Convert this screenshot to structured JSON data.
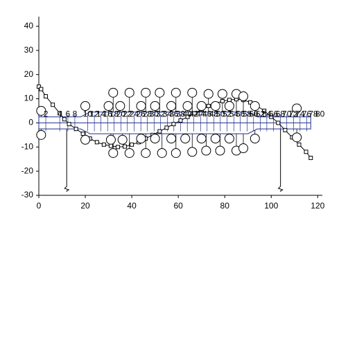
{
  "chart_data": {
    "type": "scatter",
    "xlim": [
      0,
      122
    ],
    "ylim": [
      -30,
      44
    ],
    "xticks": [
      0,
      20,
      40,
      60,
      80,
      100,
      120
    ],
    "yticks": [
      -30,
      -20,
      -10,
      0,
      10,
      20,
      30,
      40
    ],
    "band": {
      "color": "#1f2f8f",
      "x": [
        0,
        18,
        22,
        90,
        94,
        117
      ],
      "upper": [
        2.5,
        2.5,
        4.5,
        4.5,
        2.5,
        2.5
      ],
      "lower": [
        -2.5,
        -2.5,
        -4.5,
        -4.5,
        -2.5,
        -2.5
      ]
    },
    "station_labels": {
      "x": [
        3,
        9,
        12.5,
        15.5,
        21,
        23.9,
        26.7,
        29.6,
        32.4,
        35.3,
        38.1,
        41,
        43.9,
        46.7,
        49.6,
        52.4,
        55.3,
        58.1,
        61,
        63.9,
        66.7,
        69.6,
        72.4,
        75.3,
        78.1,
        81,
        83.9,
        86.7,
        89.6,
        92.4,
        95.3,
        98.1,
        101,
        103.9,
        106.7,
        109.6,
        112.4,
        115.3,
        118.1,
        121
      ],
      "labels": [
        2,
        4,
        6,
        8,
        10,
        12,
        14,
        16,
        18,
        20,
        22,
        24,
        26,
        28,
        30,
        32,
        34,
        36,
        38,
        40,
        42,
        44,
        46,
        48,
        50,
        52,
        54,
        56,
        58,
        60,
        62,
        64,
        66,
        68,
        70,
        72,
        74,
        76,
        78,
        80
      ],
      "y": 3.5
    },
    "supports": {
      "x": [
        12,
        104
      ],
      "values": [
        -28,
        -28
      ]
    },
    "series": [
      {
        "marker": "square",
        "color": "#000000",
        "line": true,
        "x": [
          0,
          1,
          3,
          6,
          9,
          11,
          13,
          16,
          19,
          22,
          25,
          28,
          31,
          34,
          37,
          40,
          43,
          46,
          49,
          52,
          55,
          58,
          61,
          64,
          67,
          70,
          73,
          76,
          79,
          82,
          85,
          88,
          91,
          94,
          97,
          100,
          103,
          106,
          109,
          112,
          115,
          117
        ],
        "values": [
          15,
          14,
          11,
          7.5,
          4,
          1.5,
          -0.5,
          -2.5,
          -4.5,
          -6.5,
          -8,
          -9,
          -9.5,
          -10,
          -9.8,
          -9,
          -8,
          -6.5,
          -5,
          -3.5,
          -2,
          -0.5,
          1,
          2.5,
          4,
          5.5,
          7,
          8,
          9,
          9.5,
          9.8,
          9.5,
          8.5,
          7,
          5,
          2.5,
          0,
          -3,
          -6,
          -9,
          -12,
          -14.5
        ]
      },
      {
        "marker": "circle",
        "color": "#000000",
        "line": false,
        "x": [
          1,
          20,
          30,
          32,
          35,
          39,
          44,
          46,
          50,
          52,
          57,
          59,
          64,
          66,
          70,
          73,
          76,
          79,
          82,
          85,
          88,
          93,
          111
        ],
        "values": [
          5,
          7,
          7,
          12.5,
          7,
          12.5,
          7,
          12.5,
          7,
          12.5,
          7,
          12.5,
          7,
          12.5,
          7,
          12,
          7,
          12,
          7,
          12,
          11,
          7,
          6
        ]
      },
      {
        "marker": "circle",
        "color": "#000000",
        "line": false,
        "x": [
          1,
          20,
          31,
          32,
          36,
          39,
          44,
          46,
          50,
          53,
          57,
          59,
          63,
          66,
          70,
          72,
          76,
          78,
          82,
          85,
          88,
          93,
          111
        ],
        "values": [
          -5,
          -7,
          -7,
          -12.5,
          -7,
          -12.5,
          -6.5,
          -12.5,
          -6.5,
          -12.5,
          -6.5,
          -12.5,
          -6.5,
          -12,
          -6.5,
          -11.5,
          -6.5,
          -11.5,
          -6.5,
          -11.5,
          -10.5,
          -6.5,
          -6
        ]
      }
    ]
  }
}
